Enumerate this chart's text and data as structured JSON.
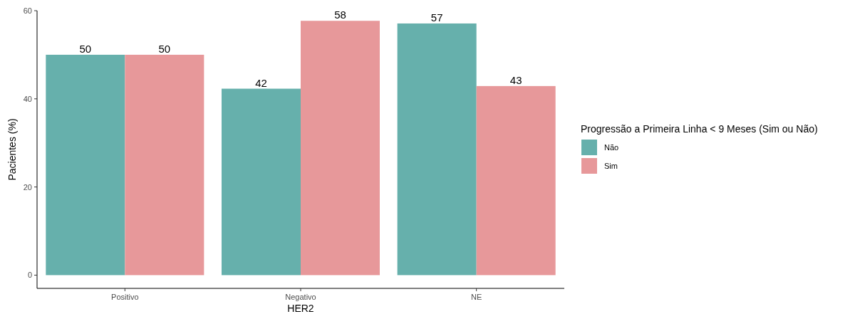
{
  "chart_data": {
    "type": "bar",
    "xlabel": "HER2",
    "ylabel": "Pacientes (%)",
    "legend_title": "Progressão a Primeira Linha < 9 Meses (Sim ou Não)",
    "categories": [
      "Positivo",
      "Negativo",
      "NE"
    ],
    "series": [
      {
        "name": "Não",
        "color": "#66b0ac",
        "values": [
          50,
          42.3,
          57.1
        ],
        "value_labels": [
          "50",
          "42",
          "57"
        ]
      },
      {
        "name": "Sim",
        "color": "#e7989a",
        "values": [
          50,
          57.7,
          42.9
        ],
        "value_labels": [
          "50",
          "58",
          "43"
        ]
      }
    ],
    "ylim": [
      -3,
      60
    ],
    "yticks": [
      0,
      20,
      40,
      60
    ],
    "grid": false,
    "legend": "right"
  }
}
